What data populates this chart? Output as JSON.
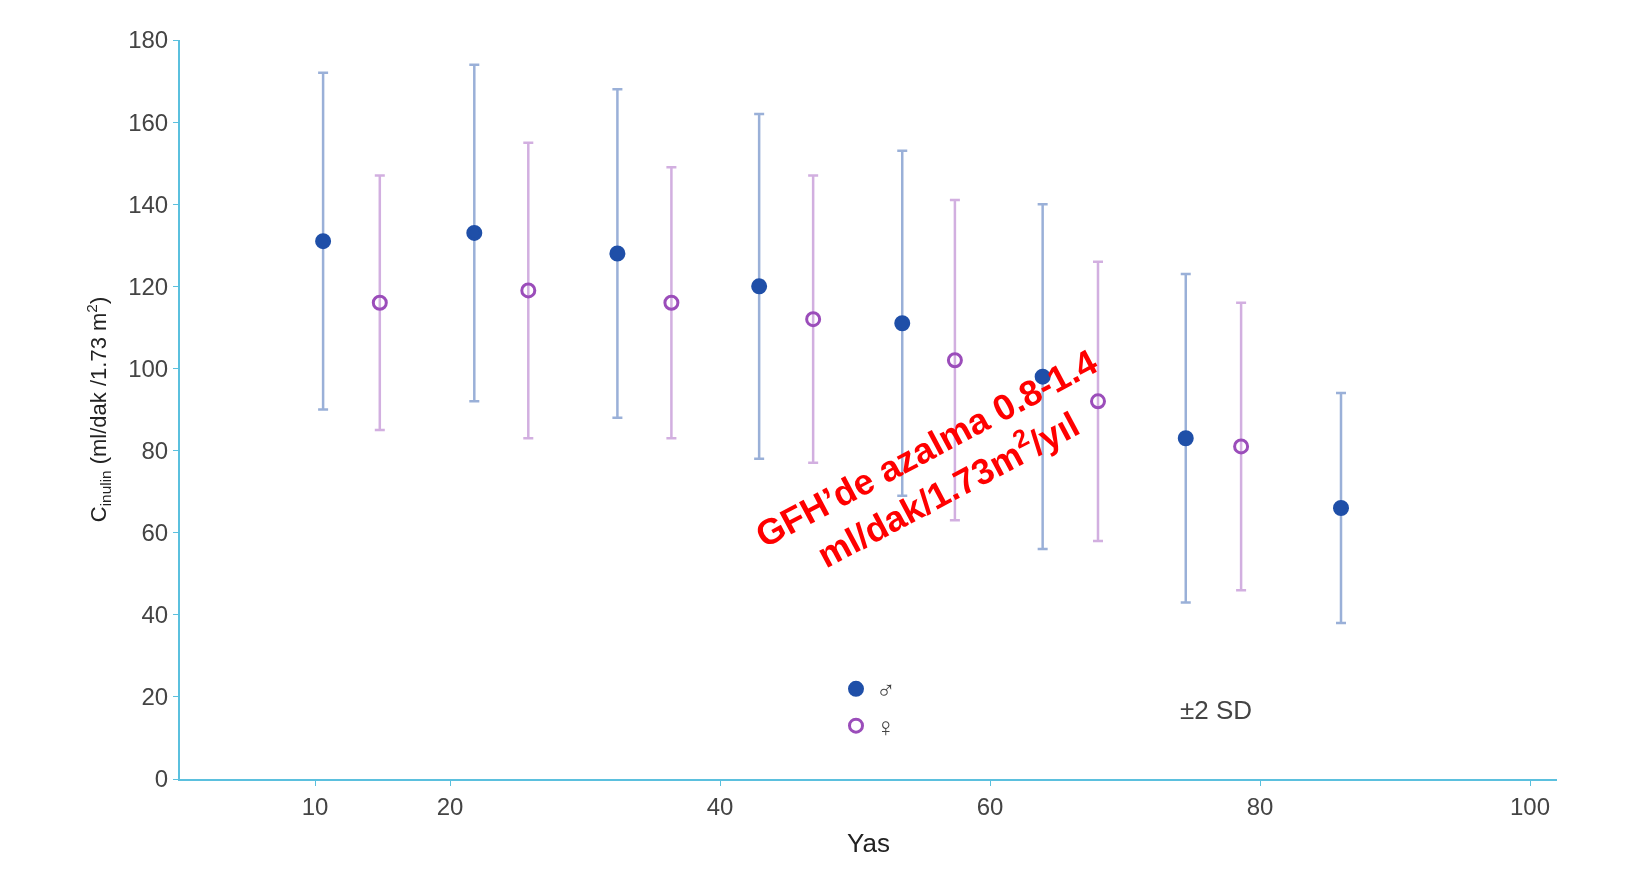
{
  "chart_data": {
    "type": "scatter",
    "xlabel": "Yas",
    "ylabel": "C$_{inulin}$ (ml/dak /1.73 m$^{2}$)",
    "x": [
      10.6,
      21.8,
      32.4,
      42.9,
      53.5,
      63.9,
      74.5,
      86
    ],
    "series": [
      {
        "name": "♂",
        "color": "#1f4fa8",
        "values": [
          131,
          133,
          128,
          120,
          111,
          98,
          83,
          66
        ],
        "errors": [
          41,
          41,
          40,
          42,
          42,
          42,
          40,
          28
        ]
      },
      {
        "name": "♀",
        "color": "#9b4dba",
        "x": [
          14.8,
          25.8,
          36.4,
          46.9,
          57.4,
          68,
          78.6
        ],
        "values": [
          116,
          119,
          116,
          112,
          102,
          92,
          81
        ],
        "errors": [
          31,
          36,
          33,
          35,
          39,
          34,
          35
        ]
      }
    ],
    "xlim": [
      0,
      102
    ],
    "xticks": [
      10,
      20,
      40,
      60,
      80,
      100
    ],
    "ylim": [
      0,
      180
    ],
    "yticks": [
      0,
      20,
      40,
      60,
      80,
      100,
      120,
      140,
      160,
      180
    ],
    "legend": "bottom",
    "marker": "circle",
    "annotations": [
      "±2 SD",
      "GFH’de azalma 0.8-1.4\nml/dak/1.73m$^{2}$/yıl"
    ]
  }
}
